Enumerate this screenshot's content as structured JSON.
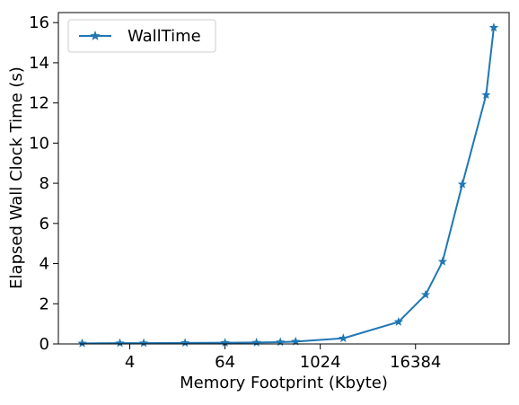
{
  "chart_data": {
    "type": "line",
    "xscale": "log2",
    "xlabel": "Memory Footprint (Kbyte)",
    "ylabel": "Elapsed Wall Clock Time (s)",
    "x_ticks": [
      4,
      64,
      1024,
      16384
    ],
    "x_tick_labels": [
      "4",
      "64",
      "1024",
      "16384"
    ],
    "y_ticks": [
      0,
      2,
      4,
      6,
      8,
      10,
      12,
      14,
      16
    ],
    "y_tick_labels": [
      "0",
      "2",
      "4",
      "6",
      "8",
      "10",
      "12",
      "14",
      "16"
    ],
    "xlim": [
      0.5,
      250000
    ],
    "ylim": [
      0,
      16.5
    ],
    "grid": false,
    "legend_position": "top-left",
    "series": [
      {
        "name": "WallTime",
        "color": "#1f77b4",
        "marker": "star",
        "x": [
          1,
          3,
          6,
          20,
          64,
          160,
          320,
          500,
          2000,
          10000,
          22000,
          36000,
          64000,
          128000,
          160000
        ],
        "y": [
          0.03,
          0.04,
          0.04,
          0.05,
          0.06,
          0.07,
          0.09,
          0.12,
          0.28,
          1.1,
          2.45,
          4.1,
          7.95,
          12.4,
          15.75
        ]
      }
    ]
  }
}
